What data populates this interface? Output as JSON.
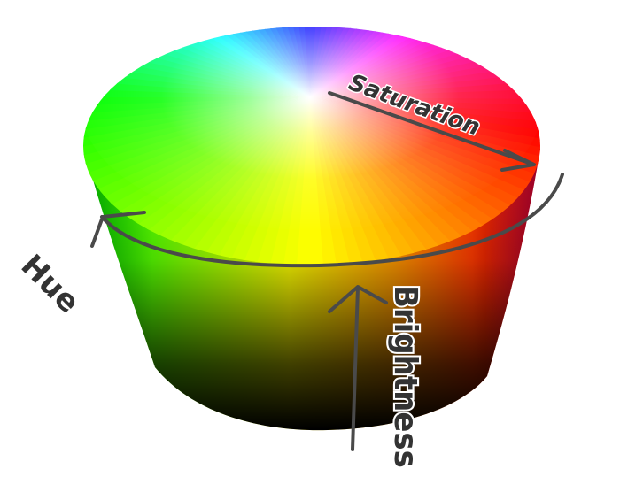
{
  "diagram": {
    "labels": {
      "saturation": "Saturation",
      "hue": "Hue",
      "brightness": "Brightness"
    },
    "colors": {
      "arrow": "#4a4a4a",
      "label_fill": "#333333",
      "label_outline": "#ffffff",
      "background": "#ffffff"
    },
    "hue_wheel": [
      {
        "hue": "red",
        "color": "#ff0000"
      },
      {
        "hue": "yellow",
        "color": "#ffff00"
      },
      {
        "hue": "green",
        "color": "#00ff00"
      },
      {
        "hue": "cyan",
        "color": "#00ffff"
      },
      {
        "hue": "blue",
        "color": "#0000ff"
      },
      {
        "hue": "magenta",
        "color": "#ff00ff"
      }
    ]
  }
}
